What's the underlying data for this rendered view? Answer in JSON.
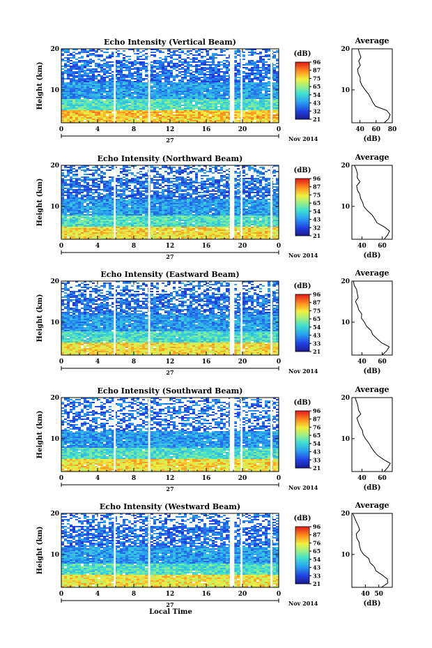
{
  "figure": {
    "x_axis_title": "Local Time",
    "date_label": "Nov 2014",
    "day_label": "27",
    "colorbar_unit": "(dB)",
    "avg_unit": "(dB)"
  },
  "chart_data": [
    {
      "type": "heatmap",
      "title": "Echo Intensity (Vertical Beam)",
      "ylabel": "Height (km)",
      "x_ticks": [
        "0",
        "4",
        "8",
        "12",
        "16",
        "20",
        "0"
      ],
      "xlim": [
        0,
        24
      ],
      "y_ticks": [
        "10",
        "20"
      ],
      "ylim": [
        2,
        20
      ],
      "colorbar_ticks": [
        "96",
        "87",
        "75",
        "65",
        "54",
        "43",
        "32",
        "21"
      ],
      "data_gaps_hours": [
        [
          5.8,
          6.0
        ],
        [
          9.6,
          9.8
        ],
        [
          18.6,
          19.1
        ],
        [
          19.8,
          20.0
        ],
        [
          23.1,
          23.3
        ]
      ],
      "avg_panel": {
        "title": "Average",
        "xlabel": "(dB)",
        "x_ticks": [
          "40",
          "60",
          "80"
        ],
        "xlim": [
          30,
          80
        ],
        "y_ticks": [
          "10",
          "20"
        ],
        "ylim": [
          2,
          20
        ],
        "height_km": [
          2,
          3,
          4,
          5,
          6,
          7,
          8,
          9,
          10,
          11,
          12,
          13,
          14,
          15,
          16,
          17,
          18,
          19,
          20
        ],
        "db": [
          70,
          75,
          77,
          73,
          60,
          56,
          54,
          50,
          46,
          43,
          41,
          40,
          38,
          37,
          40,
          38,
          41,
          39,
          38
        ]
      }
    },
    {
      "type": "heatmap",
      "title": "Echo Intensity (Northward Beam)",
      "ylabel": "Height (km)",
      "x_ticks": [
        "0",
        "4",
        "8",
        "12",
        "16",
        "20",
        "0"
      ],
      "xlim": [
        0,
        24
      ],
      "y_ticks": [
        "10",
        "20"
      ],
      "ylim": [
        2,
        20
      ],
      "colorbar_ticks": [
        "96",
        "87",
        "75",
        "65",
        "54",
        "43",
        "32",
        "21"
      ],
      "data_gaps_hours": [
        [
          5.8,
          6.0
        ],
        [
          9.6,
          9.8
        ],
        [
          18.6,
          19.1
        ],
        [
          19.8,
          20.0
        ],
        [
          23.1,
          23.3
        ]
      ],
      "avg_panel": {
        "title": "Average",
        "xlabel": "(dB)",
        "x_ticks": [
          "40",
          "60"
        ],
        "xlim": [
          30,
          70
        ],
        "y_ticks": [
          "10",
          "20"
        ],
        "ylim": [
          2,
          20
        ],
        "height_km": [
          2,
          3,
          4,
          5,
          6,
          7,
          8,
          9,
          10,
          11,
          12,
          13,
          14,
          15,
          16,
          17,
          18,
          19,
          20
        ],
        "db": [
          62,
          66,
          68,
          62,
          55,
          52,
          50,
          46,
          42,
          40,
          39,
          38,
          36,
          35,
          38,
          36,
          35,
          34,
          33
        ]
      }
    },
    {
      "type": "heatmap",
      "title": "Echo Intensity (Eastward Beam)",
      "ylabel": "Height (km)",
      "x_ticks": [
        "0",
        "4",
        "8",
        "12",
        "16",
        "20",
        "0"
      ],
      "xlim": [
        0,
        24
      ],
      "y_ticks": [
        "10",
        "20"
      ],
      "ylim": [
        2,
        20
      ],
      "colorbar_ticks": [
        "96",
        "87",
        "75",
        "65",
        "54",
        "43",
        "33",
        "21"
      ],
      "data_gaps_hours": [
        [
          5.8,
          6.0
        ],
        [
          9.6,
          9.8
        ],
        [
          18.6,
          19.1
        ],
        [
          19.8,
          20.0
        ],
        [
          23.1,
          23.3
        ]
      ],
      "avg_panel": {
        "title": "Average",
        "xlabel": "(dB)",
        "x_ticks": [
          "40",
          "60"
        ],
        "xlim": [
          30,
          70
        ],
        "y_ticks": [
          "10",
          "20"
        ],
        "ylim": [
          2,
          20
        ],
        "height_km": [
          2,
          3,
          4,
          5,
          6,
          7,
          8,
          9,
          10,
          11,
          12,
          13,
          14,
          15,
          16,
          17,
          18,
          19,
          20
        ],
        "db": [
          60,
          65,
          67,
          60,
          54,
          51,
          49,
          45,
          42,
          40,
          39,
          37,
          35,
          34,
          37,
          35,
          34,
          33,
          32
        ]
      }
    },
    {
      "type": "heatmap",
      "title": "Echo Intensity (Southward Beam)",
      "ylabel": "Height (km)",
      "x_ticks": [
        "0",
        "4",
        "8",
        "12",
        "16",
        "20",
        "0"
      ],
      "xlim": [
        0,
        24
      ],
      "y_ticks": [
        "10",
        "20"
      ],
      "ylim": [
        2,
        20
      ],
      "colorbar_ticks": [
        "96",
        "87",
        "76",
        "65",
        "54",
        "43",
        "33",
        "21"
      ],
      "data_gaps_hours": [
        [
          5.8,
          6.0
        ],
        [
          9.6,
          9.8
        ],
        [
          18.6,
          19.1
        ],
        [
          19.8,
          20.0
        ],
        [
          23.1,
          23.3
        ]
      ],
      "avg_panel": {
        "title": "Average",
        "xlabel": "(dB)",
        "x_ticks": [
          "40",
          "60"
        ],
        "xlim": [
          30,
          70
        ],
        "y_ticks": [
          "10",
          "20"
        ],
        "ylim": [
          2,
          20
        ],
        "height_km": [
          2,
          3,
          4,
          5,
          6,
          7,
          8,
          9,
          10,
          11,
          12,
          13,
          14,
          15,
          16,
          17,
          18,
          19,
          20
        ],
        "db": [
          62,
          66,
          68,
          61,
          55,
          51,
          49,
          46,
          43,
          41,
          40,
          38,
          36,
          35,
          39,
          37,
          36,
          34,
          33
        ]
      }
    },
    {
      "type": "heatmap",
      "title": "Echo Intensity (Westward Beam)",
      "ylabel": "Height (km)",
      "x_ticks": [
        "0",
        "4",
        "8",
        "12",
        "16",
        "20",
        "0"
      ],
      "xlim": [
        0,
        24
      ],
      "y_ticks": [
        "10",
        "20"
      ],
      "ylim": [
        2,
        20
      ],
      "colorbar_ticks": [
        "96",
        "87",
        "76",
        "65",
        "54",
        "43",
        "33",
        "21"
      ],
      "data_gaps_hours": [
        [
          5.8,
          6.0
        ],
        [
          9.6,
          9.8
        ],
        [
          18.6,
          19.1
        ],
        [
          19.8,
          20.0
        ],
        [
          23.1,
          23.3
        ]
      ],
      "avg_panel": {
        "title": "Average",
        "xlabel": "(dB)",
        "x_ticks": [
          "40",
          "50"
        ],
        "xlim": [
          30,
          60
        ],
        "y_ticks": [
          "10",
          "20"
        ],
        "ylim": [
          2,
          20
        ],
        "height_km": [
          2,
          3,
          4,
          5,
          6,
          7,
          8,
          9,
          10,
          11,
          12,
          13,
          14,
          15,
          16,
          17,
          18,
          19,
          20
        ],
        "db": [
          52,
          56,
          57,
          53,
          48,
          46,
          44,
          42,
          39,
          37,
          36,
          35,
          34,
          33,
          36,
          34,
          33,
          32,
          31
        ]
      }
    }
  ]
}
